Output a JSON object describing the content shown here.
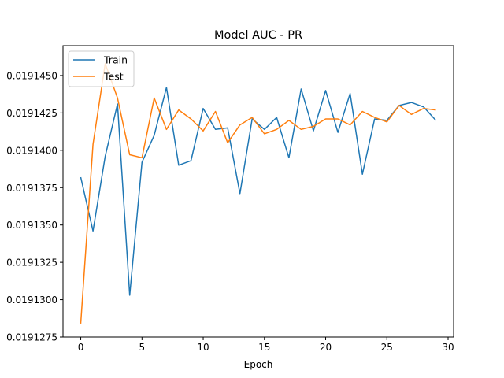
{
  "chart_data": {
    "type": "line",
    "title": "Model AUC - PR",
    "xlabel": "Epoch",
    "ylabel": "",
    "xlim": [
      -1.45,
      30.45
    ],
    "ylim": [
      0.0191275,
      0.019147
    ],
    "xticks": [
      0,
      5,
      10,
      15,
      20,
      25,
      30
    ],
    "xtick_labels": [
      "0",
      "5",
      "10",
      "15",
      "20",
      "25",
      "30"
    ],
    "yticks": [
      0.0191275,
      0.01913,
      0.0191325,
      0.019135,
      0.0191375,
      0.01914,
      0.0191425,
      0.019145
    ],
    "ytick_labels": [
      "0.0191275",
      "0.0191300",
      "0.0191325",
      "0.0191350",
      "0.0191375",
      "0.0191400",
      "0.0191425",
      "0.0191450"
    ],
    "grid": false,
    "legend_position": "top-left",
    "x": [
      0,
      1,
      2,
      3,
      4,
      5,
      6,
      7,
      8,
      9,
      10,
      11,
      12,
      13,
      14,
      15,
      16,
      17,
      18,
      19,
      20,
      21,
      22,
      23,
      24,
      25,
      26,
      27,
      28,
      29
    ],
    "series": [
      {
        "name": "Train",
        "color": "#1f77b4",
        "values": [
          0.0191382,
          0.0191346,
          0.0191396,
          0.0191431,
          0.0191303,
          0.0191392,
          0.019141,
          0.0191442,
          0.019139,
          0.0191393,
          0.0191428,
          0.0191414,
          0.0191415,
          0.0191371,
          0.0191421,
          0.0191414,
          0.0191422,
          0.0191395,
          0.0191441,
          0.0191413,
          0.019144,
          0.0191412,
          0.0191438,
          0.0191384,
          0.0191421,
          0.019142,
          0.019143,
          0.0191432,
          0.0191429,
          0.019142
        ]
      },
      {
        "name": "Test",
        "color": "#ff7f0e",
        "values": [
          0.0191284,
          0.0191404,
          0.0191458,
          0.0191435,
          0.0191397,
          0.0191395,
          0.0191435,
          0.0191414,
          0.0191427,
          0.0191421,
          0.0191413,
          0.0191426,
          0.0191405,
          0.0191417,
          0.0191422,
          0.0191411,
          0.0191414,
          0.019142,
          0.0191414,
          0.0191416,
          0.0191421,
          0.0191421,
          0.0191417,
          0.0191426,
          0.0191422,
          0.0191419,
          0.019143,
          0.0191424,
          0.0191428,
          0.0191427
        ]
      }
    ]
  }
}
